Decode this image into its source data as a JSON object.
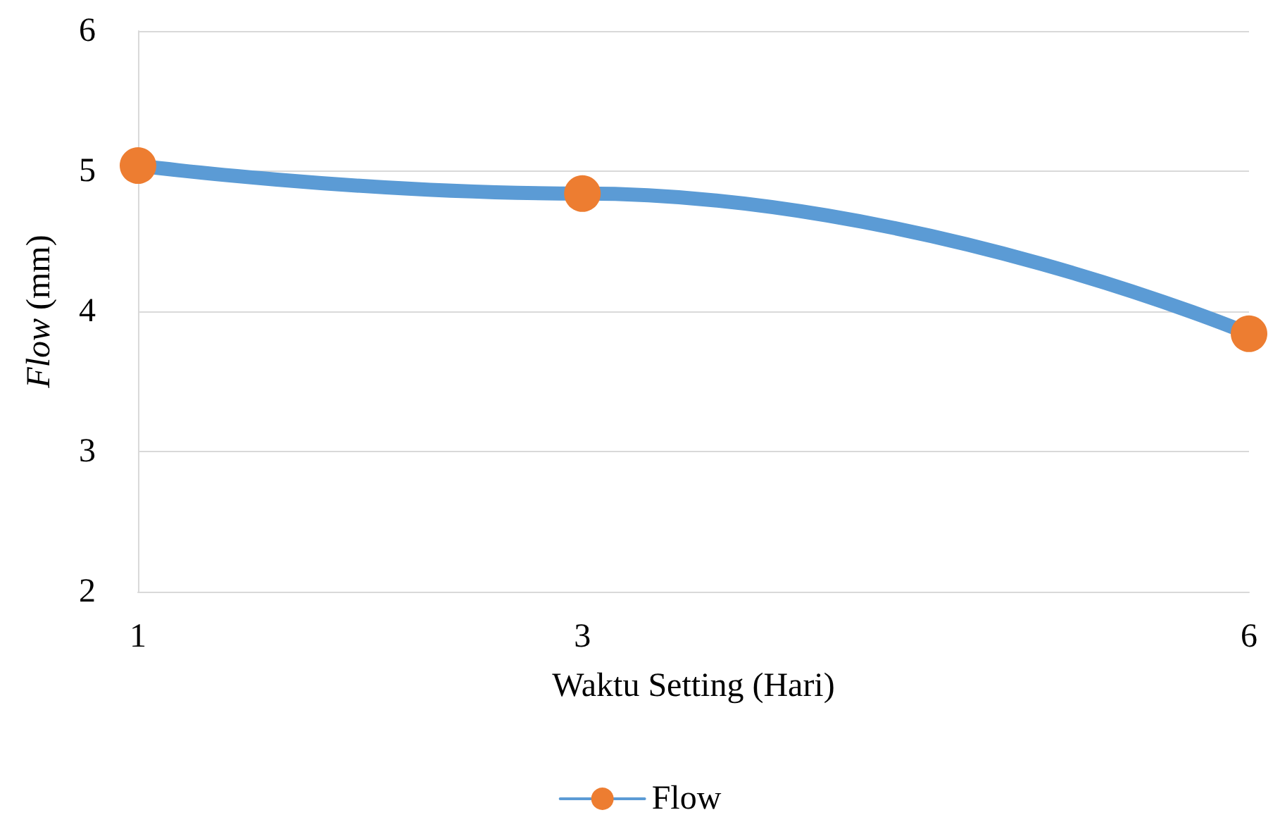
{
  "chart_data": {
    "type": "line",
    "xlabel": "Waktu Setting (Hari)",
    "ylabel": "Flow (mm)",
    "x": [
      1,
      3,
      6
    ],
    "xlim": [
      1,
      6
    ],
    "xticks": [
      1,
      3,
      6
    ],
    "ylim": [
      2,
      6
    ],
    "yticks": [
      2,
      3,
      4,
      5,
      6
    ],
    "series": [
      {
        "name": "Flow",
        "color": "#5b9bd5",
        "colors": [
          "#ed7d31",
          "#ed7d31",
          "#ed7d31"
        ],
        "values": [
          5.04,
          4.84,
          3.84
        ]
      }
    ],
    "grid": "y",
    "legend": "bottom",
    "marker": "circle",
    "line_style": "solid"
  }
}
